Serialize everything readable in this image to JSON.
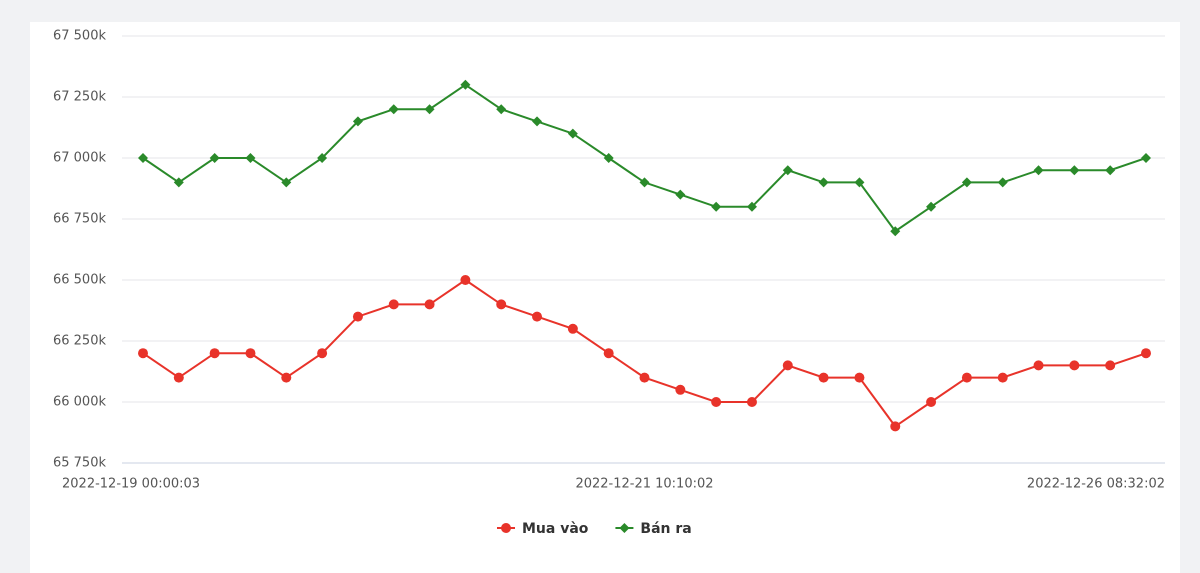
{
  "chart_data": {
    "type": "line",
    "categories": [
      "2022-12-19 00:00:03",
      null,
      null,
      null,
      null,
      null,
      null,
      null,
      null,
      null,
      null,
      null,
      null,
      null,
      "2022-12-21 10:10:02",
      null,
      null,
      null,
      null,
      null,
      null,
      null,
      null,
      null,
      null,
      null,
      null,
      null,
      "2022-12-26 08:32:02"
    ],
    "series": [
      {
        "name": "Mua vào",
        "color": "#e8332a",
        "marker": "circle",
        "values": [
          66200,
          66100,
          66200,
          66200,
          66100,
          66200,
          66350,
          66400,
          66400,
          66500,
          66400,
          66350,
          66300,
          66200,
          66100,
          66050,
          66000,
          66000,
          66150,
          66100,
          66100,
          65900,
          66000,
          66100,
          66100,
          66150,
          66150,
          66150,
          66200
        ]
      },
      {
        "name": "Bán ra",
        "color": "#2a8a2a",
        "marker": "diamond",
        "values": [
          67000,
          66900,
          67000,
          67000,
          66900,
          67000,
          67150,
          67200,
          67200,
          67300,
          67200,
          67150,
          67100,
          67000,
          66900,
          66850,
          66800,
          66800,
          66950,
          66900,
          66900,
          66700,
          66800,
          66900,
          66900,
          66950,
          66950,
          66950,
          67000
        ]
      }
    ],
    "ylim": [
      65750,
      67500
    ],
    "yticks": [
      {
        "value": 65750,
        "label": "65 750k"
      },
      {
        "value": 66000,
        "label": "66 000k"
      },
      {
        "value": 66250,
        "label": "66 250k"
      },
      {
        "value": 66500,
        "label": "66 500k"
      },
      {
        "value": 66750,
        "label": "66 750k"
      },
      {
        "value": 67000,
        "label": "67 000k"
      },
      {
        "value": 67250,
        "label": "67 250k"
      },
      {
        "value": 67500,
        "label": "67 500k"
      }
    ],
    "grid": true,
    "legend": "bottom"
  }
}
